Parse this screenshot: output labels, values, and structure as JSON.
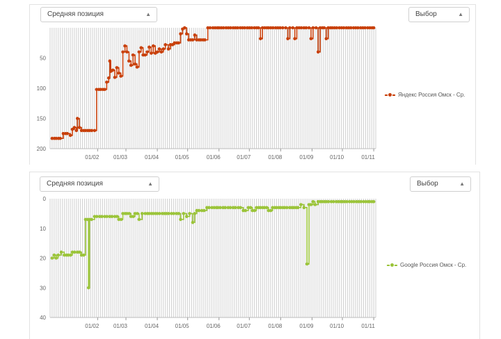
{
  "chart_data": [
    {
      "type": "line",
      "title": "",
      "metric_select": "Средняя позиция",
      "mode_select": "Выбор",
      "series": [
        {
          "name": "Яндекс Россия Омск - Ср.",
          "color": "#c8400b",
          "points": [
            [
              "2020-12-18",
              183
            ],
            [
              "2020-12-22",
              183
            ],
            [
              "2020-12-26",
              183
            ],
            [
              "2020-12-29",
              175
            ],
            [
              "2021-01-02",
              175
            ],
            [
              "2021-01-05",
              178
            ],
            [
              "2021-01-07",
              168
            ],
            [
              "2021-01-09",
              165
            ],
            [
              "2021-01-11",
              170
            ],
            [
              "2021-01-12",
              150
            ],
            [
              "2021-01-14",
              165
            ],
            [
              "2021-01-16",
              170
            ],
            [
              "2021-01-20",
              170
            ],
            [
              "2021-01-24",
              170
            ],
            [
              "2021-01-29",
              170
            ],
            [
              "2021-01-31",
              102
            ],
            [
              "2021-02-04",
              102
            ],
            [
              "2021-02-08",
              102
            ],
            [
              "2021-02-10",
              90
            ],
            [
              "2021-02-12",
              83
            ],
            [
              "2021-02-13",
              55
            ],
            [
              "2021-02-14",
              72
            ],
            [
              "2021-02-16",
              70
            ],
            [
              "2021-02-18",
              82
            ],
            [
              "2021-02-20",
              66
            ],
            [
              "2021-02-22",
              75
            ],
            [
              "2021-02-24",
              80
            ],
            [
              "2021-02-26",
              40
            ],
            [
              "2021-02-28",
              30
            ],
            [
              "2021-03-02",
              40
            ],
            [
              "2021-03-04",
              55
            ],
            [
              "2021-03-06",
              62
            ],
            [
              "2021-03-08",
              45
            ],
            [
              "2021-03-10",
              60
            ],
            [
              "2021-03-12",
              65
            ],
            [
              "2021-03-14",
              40
            ],
            [
              "2021-03-16",
              33
            ],
            [
              "2021-03-18",
              45
            ],
            [
              "2021-03-20",
              45
            ],
            [
              "2021-03-22",
              40
            ],
            [
              "2021-03-24",
              32
            ],
            [
              "2021-03-26",
              42
            ],
            [
              "2021-03-28",
              30
            ],
            [
              "2021-03-30",
              42
            ],
            [
              "2021-04-01",
              40
            ],
            [
              "2021-04-03",
              35
            ],
            [
              "2021-04-05",
              40
            ],
            [
              "2021-04-07",
              35
            ],
            [
              "2021-04-09",
              28
            ],
            [
              "2021-04-12",
              35
            ],
            [
              "2021-04-14",
              28
            ],
            [
              "2021-04-16",
              28
            ],
            [
              "2021-04-18",
              25
            ],
            [
              "2021-04-22",
              25
            ],
            [
              "2021-04-24",
              10
            ],
            [
              "2021-04-26",
              2
            ],
            [
              "2021-04-28",
              0
            ],
            [
              "2021-04-30",
              10
            ],
            [
              "2021-05-02",
              20
            ],
            [
              "2021-05-04",
              20
            ],
            [
              "2021-05-06",
              20
            ],
            [
              "2021-05-08",
              12
            ],
            [
              "2021-05-10",
              20
            ],
            [
              "2021-05-14",
              20
            ],
            [
              "2021-05-18",
              20
            ],
            [
              "2021-05-21",
              0
            ],
            [
              "2021-05-26",
              0
            ],
            [
              "2021-06-01",
              0
            ],
            [
              "2021-06-08",
              0
            ],
            [
              "2021-06-15",
              0
            ],
            [
              "2021-06-22",
              0
            ],
            [
              "2021-06-29",
              0
            ],
            [
              "2021-07-06",
              0
            ],
            [
              "2021-07-10",
              0
            ],
            [
              "2021-07-12",
              18
            ],
            [
              "2021-07-14",
              0
            ],
            [
              "2021-07-20",
              0
            ],
            [
              "2021-07-27",
              0
            ],
            [
              "2021-08-03",
              0
            ],
            [
              "2021-08-06",
              0
            ],
            [
              "2021-08-08",
              18
            ],
            [
              "2021-08-10",
              0
            ],
            [
              "2021-08-13",
              0
            ],
            [
              "2021-08-15",
              18
            ],
            [
              "2021-08-17",
              0
            ],
            [
              "2021-08-24",
              0
            ],
            [
              "2021-08-29",
              0
            ],
            [
              "2021-08-31",
              18
            ],
            [
              "2021-09-02",
              0
            ],
            [
              "2021-09-05",
              0
            ],
            [
              "2021-09-07",
              40
            ],
            [
              "2021-09-09",
              0
            ],
            [
              "2021-09-13",
              0
            ],
            [
              "2021-09-15",
              18
            ],
            [
              "2021-09-17",
              0
            ],
            [
              "2021-09-21",
              0
            ],
            [
              "2021-09-28",
              0
            ],
            [
              "2021-10-05",
              0
            ],
            [
              "2021-10-12",
              0
            ],
            [
              "2021-10-19",
              0
            ],
            [
              "2021-10-26",
              0
            ],
            [
              "2021-11-01",
              0
            ]
          ]
        }
      ],
      "x_ticks": [
        "01/02",
        "01/03",
        "01/04",
        "01/05",
        "01/06",
        "01/07",
        "01/08",
        "01/09",
        "01/10",
        "01/11"
      ],
      "y_ticks": [
        50,
        100,
        150,
        200
      ],
      "ylim": [
        200,
        0
      ],
      "legend_position": "right"
    },
    {
      "type": "line",
      "title": "",
      "metric_select": "Средняя позиция",
      "mode_select": "Выбор",
      "series": [
        {
          "name": "Google Россия Омск - Ср.",
          "color": "#9bc43a",
          "points": [
            [
              "2020-12-18",
              20
            ],
            [
              "2020-12-20",
              19
            ],
            [
              "2020-12-22",
              20
            ],
            [
              "2020-12-24",
              19
            ],
            [
              "2020-12-27",
              18
            ],
            [
              "2020-12-30",
              19
            ],
            [
              "2021-01-03",
              19
            ],
            [
              "2021-01-07",
              18
            ],
            [
              "2021-01-12",
              18
            ],
            [
              "2021-01-16",
              19
            ],
            [
              "2021-01-20",
              7
            ],
            [
              "2021-01-22",
              7
            ],
            [
              "2021-01-23",
              30
            ],
            [
              "2021-01-24",
              7
            ],
            [
              "2021-01-26",
              7
            ],
            [
              "2021-01-29",
              6
            ],
            [
              "2021-02-03",
              6
            ],
            [
              "2021-02-08",
              6
            ],
            [
              "2021-02-13",
              6
            ],
            [
              "2021-02-18",
              6
            ],
            [
              "2021-02-22",
              7
            ],
            [
              "2021-02-26",
              5
            ],
            [
              "2021-03-02",
              5
            ],
            [
              "2021-03-06",
              6
            ],
            [
              "2021-03-10",
              5
            ],
            [
              "2021-03-14",
              7
            ],
            [
              "2021-03-17",
              5
            ],
            [
              "2021-03-20",
              5
            ],
            [
              "2021-03-24",
              5
            ],
            [
              "2021-03-28",
              5
            ],
            [
              "2021-04-01",
              5
            ],
            [
              "2021-04-06",
              5
            ],
            [
              "2021-04-10",
              5
            ],
            [
              "2021-04-15",
              5
            ],
            [
              "2021-04-20",
              5
            ],
            [
              "2021-04-24",
              7
            ],
            [
              "2021-04-27",
              5
            ],
            [
              "2021-04-30",
              6
            ],
            [
              "2021-05-03",
              5
            ],
            [
              "2021-05-06",
              8
            ],
            [
              "2021-05-08",
              5
            ],
            [
              "2021-05-10",
              4
            ],
            [
              "2021-05-15",
              4
            ],
            [
              "2021-05-20",
              3
            ],
            [
              "2021-05-25",
              3
            ],
            [
              "2021-05-31",
              3
            ],
            [
              "2021-06-05",
              3
            ],
            [
              "2021-06-10",
              3
            ],
            [
              "2021-06-15",
              3
            ],
            [
              "2021-06-20",
              3
            ],
            [
              "2021-06-25",
              4
            ],
            [
              "2021-06-30",
              3
            ],
            [
              "2021-07-04",
              4
            ],
            [
              "2021-07-08",
              3
            ],
            [
              "2021-07-12",
              3
            ],
            [
              "2021-07-16",
              3
            ],
            [
              "2021-07-20",
              4
            ],
            [
              "2021-07-24",
              3
            ],
            [
              "2021-07-28",
              3
            ],
            [
              "2021-08-01",
              3
            ],
            [
              "2021-08-05",
              3
            ],
            [
              "2021-08-10",
              3
            ],
            [
              "2021-08-14",
              3
            ],
            [
              "2021-08-18",
              3
            ],
            [
              "2021-08-21",
              2
            ],
            [
              "2021-08-24",
              3
            ],
            [
              "2021-08-27",
              22
            ],
            [
              "2021-08-29",
              2
            ],
            [
              "2021-08-31",
              2
            ],
            [
              "2021-09-02",
              1
            ],
            [
              "2021-09-04",
              2
            ],
            [
              "2021-09-07",
              1
            ],
            [
              "2021-09-11",
              1
            ],
            [
              "2021-09-15",
              1
            ],
            [
              "2021-09-20",
              1
            ],
            [
              "2021-09-25",
              1
            ],
            [
              "2021-10-01",
              1
            ],
            [
              "2021-10-08",
              1
            ],
            [
              "2021-10-15",
              1
            ],
            [
              "2021-10-22",
              1
            ],
            [
              "2021-10-28",
              1
            ],
            [
              "2021-11-01",
              1
            ]
          ]
        }
      ],
      "x_ticks": [
        "01/02",
        "01/03",
        "01/04",
        "01/05",
        "01/06",
        "01/07",
        "01/08",
        "01/09",
        "01/10",
        "01/11"
      ],
      "y_ticks": [
        0,
        10,
        20,
        30,
        40
      ],
      "ylim": [
        40,
        0
      ],
      "legend_position": "right"
    }
  ]
}
